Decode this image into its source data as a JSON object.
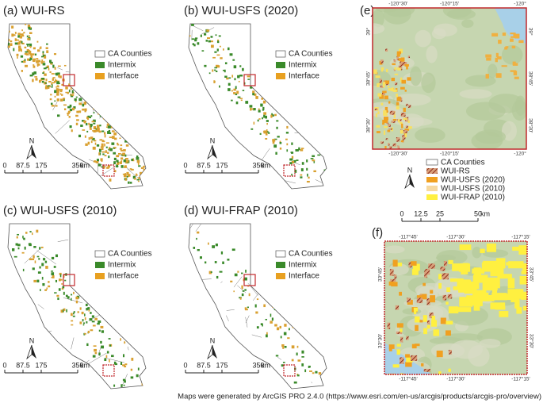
{
  "panels": [
    {
      "title": "(a) WUI-RS",
      "legend": [
        "CA Counties",
        "Intermix",
        "Interface"
      ],
      "north": "N",
      "scale": [
        "0",
        "87.5",
        "175",
        "350",
        "km"
      ]
    },
    {
      "title": "(b) WUI-USFS (2020)",
      "legend": [
        "CA Counties",
        "Intermix",
        "Interface"
      ],
      "north": "N",
      "scale": [
        "0",
        "87.5",
        "175",
        "350",
        "km"
      ]
    },
    {
      "title": "(c) WUI-USFS (2010)",
      "legend": [
        "CA Counties",
        "Intermix",
        "Interface"
      ],
      "north": "N",
      "scale": [
        "0",
        "87.5",
        "175",
        "350",
        "km"
      ]
    },
    {
      "title": "(d) WUI-FRAP (2010)",
      "legend": [
        "CA Counties",
        "Intermix",
        "Interface"
      ],
      "north": "N",
      "scale": [
        "0",
        "87.5",
        "175",
        "350",
        "km"
      ]
    }
  ],
  "inset_e": {
    "label": "(e)",
    "top": [
      "-120°30'",
      "-120°15'",
      "-120°"
    ],
    "bottom": [
      "-120°30'",
      "-120°15'",
      "-120°"
    ],
    "left": [
      "39°",
      "38°45'",
      "38°30'"
    ],
    "right": [
      "39°",
      "38°45'",
      "38°30'"
    ]
  },
  "inset_f": {
    "label": "(f)",
    "top": [
      "-117°45'",
      "-117°30'",
      "-117°15'"
    ],
    "bottom": [
      "-117°45'",
      "-117°30'",
      "-117°15'"
    ],
    "left": [
      "33°45'",
      "33°30'"
    ],
    "right": [
      "33°45'",
      "33°30'"
    ]
  },
  "inset_legend": {
    "items": [
      "CA Counties",
      "WUI-RS",
      "WUI-USFS (2020)",
      "WUI-USFS (2010)",
      "WUI-FRAP (2010)"
    ],
    "north": "N",
    "scale": [
      "0",
      "12.5",
      "25",
      "50",
      "km"
    ]
  },
  "footer": "Maps were generated by ArcGIS PRO 2.4.0 (https://www.esri.com/en-us/arcgis/products/arcgis-pro/overview)"
}
